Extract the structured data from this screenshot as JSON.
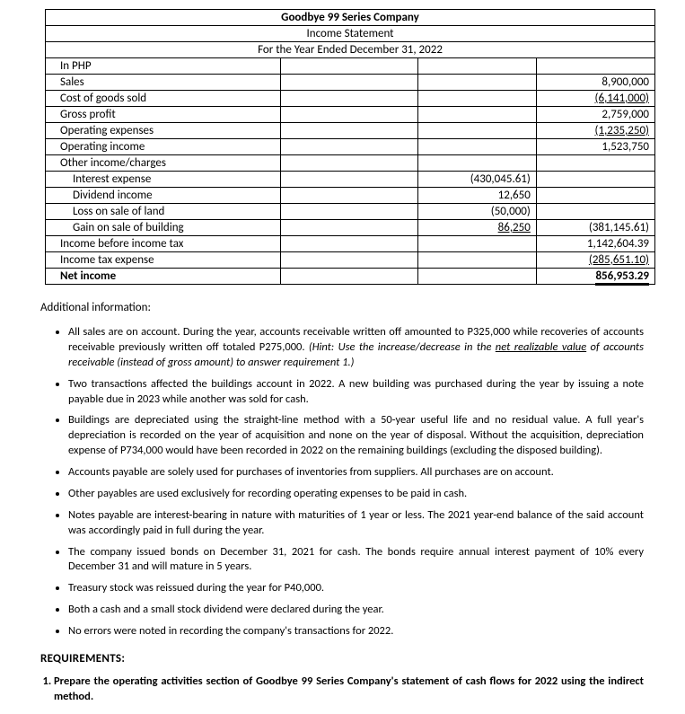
{
  "title": "Goodbye 99 Series Company",
  "subtitle1": "Income Statement",
  "subtitle2": "For the Year Ended December 31, 2022",
  "rows": {
    "in_php": "In PHP",
    "sales": {
      "label": "Sales",
      "val": "8,900,000"
    },
    "cogs": {
      "label": "Cost of goods sold",
      "val": "(6,141,000)"
    },
    "gp": {
      "label": "Gross profit",
      "val": "2,759,000"
    },
    "opex": {
      "label": "Operating expenses",
      "val": "(1,235,250)"
    },
    "opinc": {
      "label": "Operating income",
      "val": "1,523,750"
    },
    "other": {
      "label": "Other income/charges"
    },
    "int": {
      "label": "Interest expense",
      "val": "(430,045.61)"
    },
    "div": {
      "label": "Dividend income",
      "val": "12,650"
    },
    "loss": {
      "label": "Loss on sale of land",
      "val": "(50,000)"
    },
    "gain": {
      "label": "Gain on sale of building",
      "val": "86,250",
      "sum": "(381,145.61)"
    },
    "ibt": {
      "label": "Income before income tax",
      "val": "1,142,604.39"
    },
    "tax": {
      "label": "Income tax expense",
      "val": "(285,651.10)"
    },
    "ni": {
      "label": "Net income",
      "val": "856,953.29"
    }
  },
  "ai_label": "Additional information:",
  "bullets": [
    "All sales are on account. During the year, accounts receivable written off amounted to P325,000 while recoveries of accounts receivable previously written off totaled P275,000. <span class=\"italic\">(Hint: Use the increase/decrease in the <span class=\"u\">net realizable value</span> of accounts receivable (instead of gross amount) to answer requirement 1.)</span>",
    "Two transactions affected the buildings account in 2022. A new building was purchased during the year by issuing a note payable due in 2023 while another was sold for cash.",
    "Buildings are depreciated using the straight-line method with a 50-year useful life and no residual value. A full year's depreciation is recorded on the year of acquisition and none on the year of disposal. Without the acquisition, depreciation expense of P734,000 would have been recorded in 2022 on the remaining buildings (excluding the disposed building).",
    "Accounts payable are solely used for purchases of inventories from suppliers. All purchases are on account.",
    "Other payables are used exclusively for recording operating expenses to be paid in cash.",
    "Notes payable are interest-bearing in nature with maturities of 1 year or less. The 2021 year-end balance of the said account was accordingly paid in full during the year.",
    "The company issued bonds on December 31, 2021 for cash. The bonds require annual interest payment of 10% every December 31 and will mature in 5 years.",
    "Treasury stock was reissued during the year for P40,000.",
    "Both a cash and a small stock dividend were declared during the year.",
    "No errors were noted in recording the company's transactions for 2022."
  ],
  "req_label": "REQUIREMENTS:",
  "req1": "Prepare the operating activities section of Goodbye 99 Series Company's statement of cash flows for 2022 using the indirect method."
}
